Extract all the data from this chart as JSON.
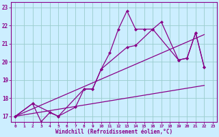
{
  "xlabel": "Windchill (Refroidissement éolien,°C)",
  "bg_color": "#cceeff",
  "grid_color": "#99cccc",
  "line_color": "#880088",
  "xlim": [
    -0.5,
    23.5
  ],
  "ylim": [
    16.7,
    23.3
  ],
  "yticks": [
    17,
    18,
    19,
    20,
    21,
    22,
    23
  ],
  "xticks": [
    0,
    1,
    2,
    3,
    4,
    5,
    6,
    7,
    8,
    9,
    10,
    11,
    12,
    13,
    14,
    15,
    16,
    17,
    18,
    19,
    20,
    21,
    22,
    23
  ],
  "line1_x": [
    0,
    2,
    3,
    4,
    5,
    7,
    8,
    9,
    10,
    13,
    14,
    16,
    19,
    20,
    21,
    22
  ],
  "line1_y": [
    17.0,
    17.7,
    16.7,
    17.2,
    17.0,
    17.5,
    18.5,
    18.5,
    19.6,
    20.8,
    20.9,
    21.8,
    20.1,
    20.2,
    21.6,
    19.7
  ],
  "line2_x": [
    0,
    2,
    5,
    8,
    9,
    10,
    11,
    12,
    13,
    14,
    15,
    16,
    17,
    19,
    20,
    21,
    22
  ],
  "line2_y": [
    17.0,
    17.7,
    17.0,
    18.5,
    18.5,
    19.6,
    20.5,
    21.8,
    22.8,
    21.8,
    21.8,
    21.8,
    22.2,
    20.1,
    20.2,
    21.6,
    19.7
  ],
  "line3_x": [
    0,
    22
  ],
  "line3_y": [
    17.0,
    18.7
  ],
  "line4_x": [
    0,
    22
  ],
  "line4_y": [
    17.0,
    21.5
  ]
}
